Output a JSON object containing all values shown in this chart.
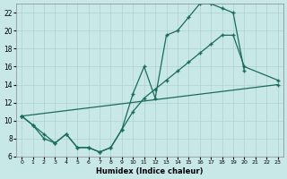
{
  "xlabel": "Humidex (Indice chaleur)",
  "bg_color": "#c8e8e8",
  "grid_color": "#b0d0d0",
  "line_color": "#1a6b5a",
  "xlim": [
    -0.5,
    23.5
  ],
  "ylim": [
    6,
    23
  ],
  "xticks": [
    0,
    1,
    2,
    3,
    4,
    5,
    6,
    7,
    8,
    9,
    10,
    11,
    12,
    13,
    14,
    15,
    16,
    17,
    18,
    19,
    20,
    21,
    22,
    23
  ],
  "yticks": [
    6,
    8,
    10,
    12,
    14,
    16,
    18,
    20,
    22
  ],
  "line1_x": [
    0,
    1,
    2,
    3,
    4,
    5,
    6,
    7,
    8,
    9,
    10,
    11,
    12,
    13,
    14,
    15,
    16,
    17,
    18,
    19,
    20
  ],
  "line1_y": [
    10.5,
    9.5,
    8.5,
    7.5,
    8.5,
    7.0,
    7.0,
    6.5,
    7.0,
    9.0,
    13.0,
    16.0,
    12.5,
    19.5,
    20.0,
    21.5,
    23.0,
    23.0,
    22.5,
    22.0,
    15.5
  ],
  "line2_x": [
    0,
    1,
    2,
    3,
    4,
    5,
    6,
    7,
    8,
    9,
    10,
    11,
    12,
    13,
    14,
    15,
    16,
    17,
    18,
    19,
    20,
    23
  ],
  "line2_y": [
    10.5,
    9.5,
    8.0,
    7.5,
    8.5,
    7.0,
    7.0,
    6.5,
    7.0,
    9.0,
    11.0,
    12.5,
    13.5,
    14.5,
    15.5,
    16.5,
    17.5,
    18.5,
    19.5,
    19.5,
    16.0,
    14.5
  ],
  "line3_x": [
    0,
    23
  ],
  "line3_y": [
    10.5,
    14.0
  ]
}
